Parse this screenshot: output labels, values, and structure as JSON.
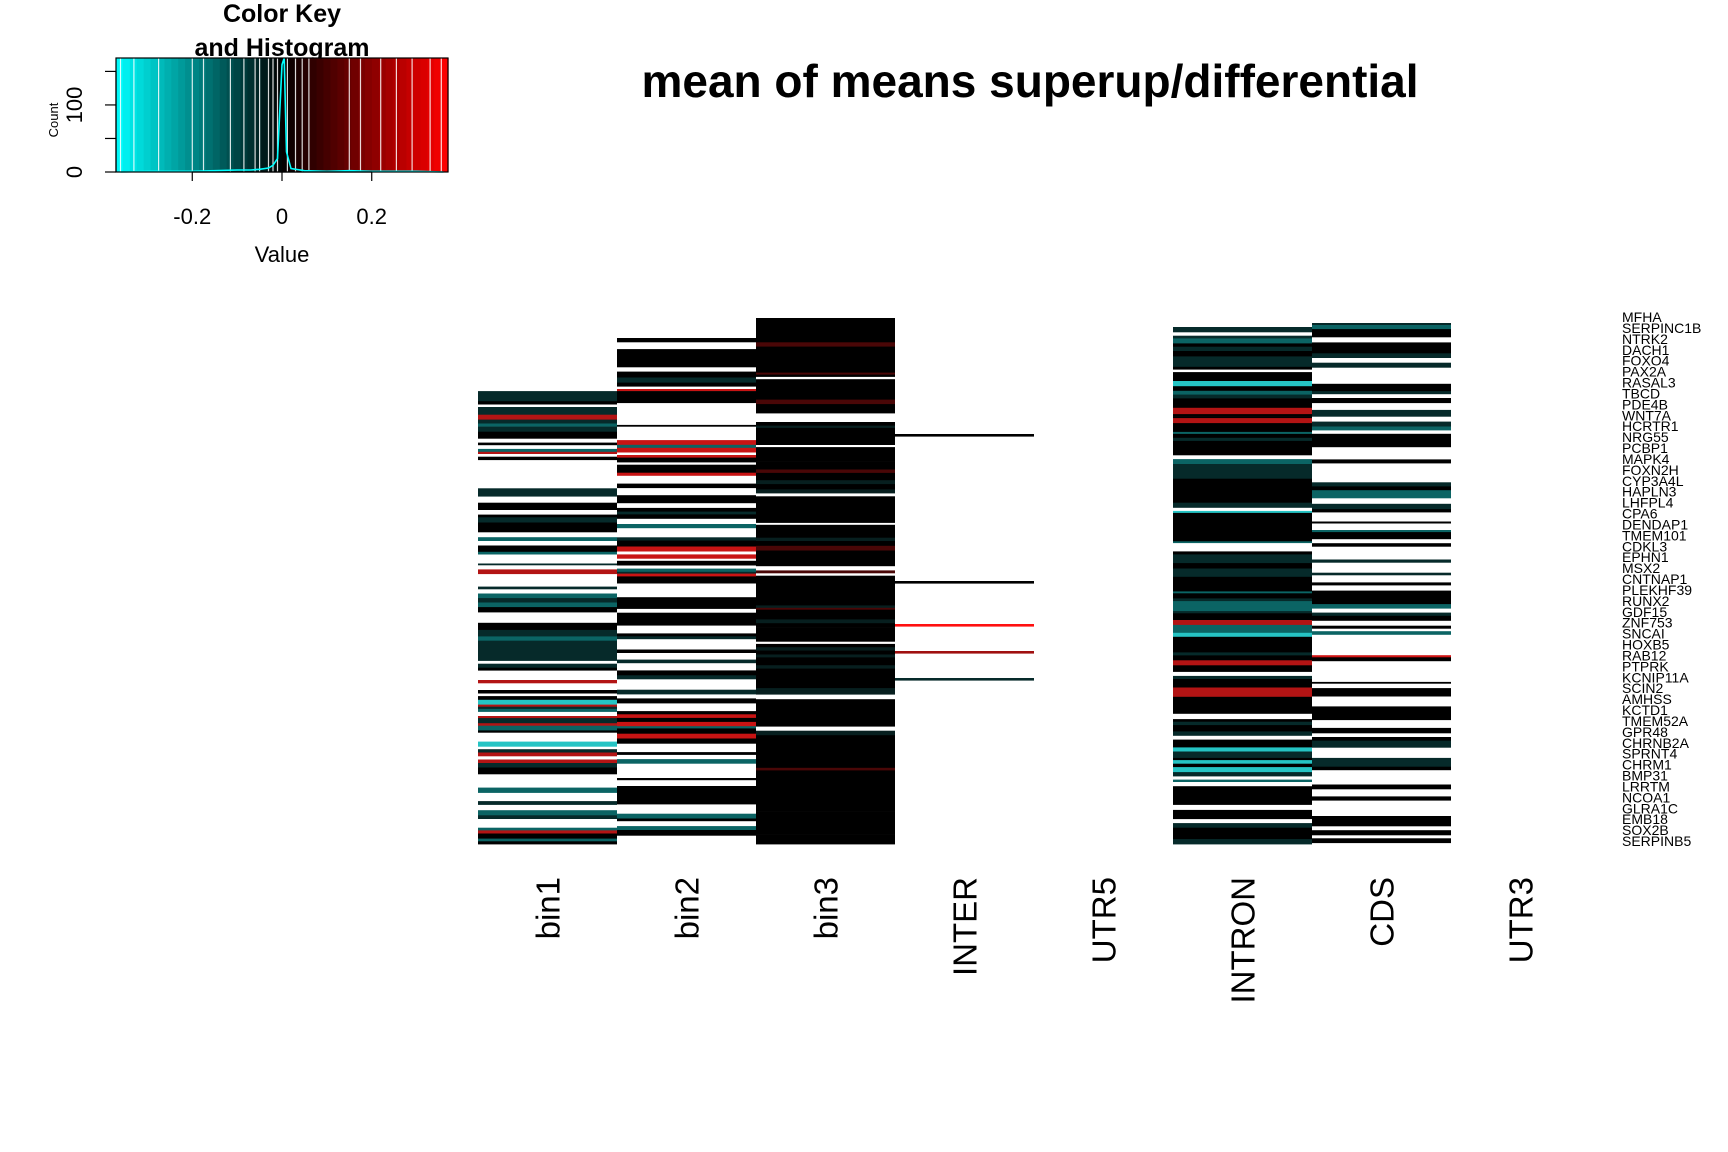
{
  "chart_data": {
    "type": "heatmap",
    "title": "mean of means superup/differential",
    "columns": [
      "bin1",
      "bin2",
      "bin3",
      "INTER",
      "UTR5",
      "INTRON",
      "CDS",
      "UTR3"
    ],
    "row_labels": [
      "MFHA",
      "SERPINC1B",
      "NTRK2",
      "DACH1",
      "FOXO4",
      "PAX2A",
      "RASAL3",
      "TBCD",
      "PDE4B",
      "WNT7A",
      "HCRTR1",
      "NRG55",
      "PCBP1",
      "MAPK4",
      "FOXN2H",
      "CYP3A4L",
      "HAPLN3",
      "LHFPL4",
      "CPA6",
      "DENDAP1",
      "TMEM101",
      "CDKL3",
      "EPHN1",
      "MSX2",
      "CNTNAP1",
      "PLEKHF39",
      "RUNX2",
      "GDF15",
      "ZNF753",
      "SNCAI",
      "HOXB5",
      "RAB12",
      "PTPRK",
      "KCNIP11A",
      "SCIN2",
      "AMHSS",
      "KCTD1",
      "TMEM52A",
      "GPR48",
      "CHRNB2A",
      "SPRNT4",
      "CHRM1",
      "BMP31",
      "LRRTM",
      "NCOA1",
      "GLRA1C",
      "EMB18",
      "SOX2B",
      "SERPINB5"
    ],
    "color_key": {
      "title": "Color Key",
      "subtitle": "and Histogram",
      "xlabel": "Value",
      "ylabel": "Count",
      "x_ticks": [
        "-0.2",
        "0",
        "0.2"
      ],
      "y_ticks": [
        "0",
        "100"
      ],
      "value_range": [
        -0.37,
        0.37
      ],
      "count_range": [
        0,
        170
      ],
      "colors": {
        "low": "#00ffff",
        "mid": "#000000",
        "high": "#ff0000"
      },
      "histogram": [
        {
          "x": -0.36,
          "count": 0
        },
        {
          "x": -0.3,
          "count": 1
        },
        {
          "x": -0.25,
          "count": 1
        },
        {
          "x": -0.2,
          "count": 1
        },
        {
          "x": -0.15,
          "count": 2
        },
        {
          "x": -0.1,
          "count": 3
        },
        {
          "x": -0.07,
          "count": 3
        },
        {
          "x": -0.05,
          "count": 4
        },
        {
          "x": -0.03,
          "count": 6
        },
        {
          "x": -0.02,
          "count": 10
        },
        {
          "x": -0.01,
          "count": 20
        },
        {
          "x": 0.0,
          "count": 160
        },
        {
          "x": 0.005,
          "count": 170
        },
        {
          "x": 0.01,
          "count": 30
        },
        {
          "x": 0.02,
          "count": 5
        },
        {
          "x": 0.05,
          "count": 2
        },
        {
          "x": 0.1,
          "count": 1
        },
        {
          "x": 0.15,
          "count": 2
        },
        {
          "x": 0.2,
          "count": 1
        },
        {
          "x": 0.3,
          "count": 1
        },
        {
          "x": 0.36,
          "count": 0
        }
      ]
    }
  }
}
